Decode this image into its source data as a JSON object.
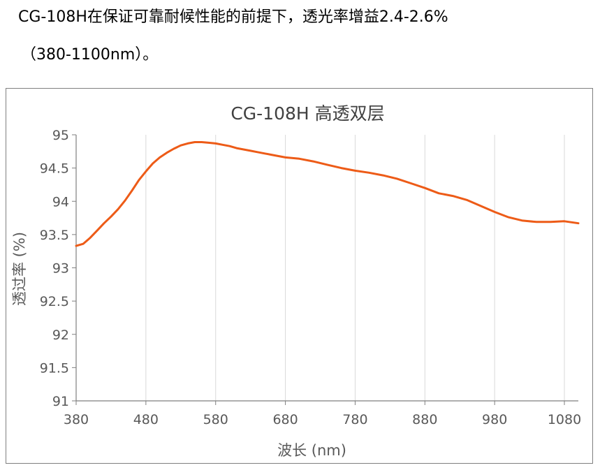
{
  "intro": {
    "line1": "CG-108H在保证可靠耐候性能的前提下，透光率增益2.4-2.6%",
    "line2": "（380-1100nm）。"
  },
  "chart_data": {
    "type": "line",
    "title": "CG-108H 高透双层",
    "xlabel": "波长 (nm)",
    "ylabel": "透过率 (%)",
    "xlim": [
      380,
      1100
    ],
    "ylim": [
      91,
      95
    ],
    "xticks": [
      380,
      480,
      580,
      680,
      780,
      880,
      980,
      1080
    ],
    "yticks": [
      91,
      91.5,
      92,
      92.5,
      93,
      93.5,
      94,
      94.5,
      95
    ],
    "ytick_labels": [
      "91",
      "91.5",
      "92",
      "92.5",
      "93",
      "93.5",
      "94",
      "94.5",
      "95"
    ],
    "grid": "vertical",
    "legend": "none",
    "line_color": "#ed5b17",
    "series": [
      {
        "name": "",
        "x": [
          380,
          390,
          400,
          410,
          420,
          430,
          440,
          450,
          460,
          470,
          480,
          490,
          500,
          510,
          520,
          530,
          540,
          550,
          560,
          570,
          580,
          590,
          600,
          610,
          620,
          630,
          640,
          660,
          680,
          700,
          720,
          740,
          760,
          780,
          800,
          820,
          840,
          860,
          880,
          900,
          920,
          940,
          960,
          980,
          1000,
          1020,
          1040,
          1060,
          1080,
          1100
        ],
        "y": [
          93.33,
          93.36,
          93.45,
          93.56,
          93.67,
          93.77,
          93.88,
          94.01,
          94.16,
          94.32,
          94.45,
          94.57,
          94.66,
          94.73,
          94.79,
          94.84,
          94.87,
          94.89,
          94.89,
          94.88,
          94.87,
          94.85,
          94.83,
          94.8,
          94.78,
          94.76,
          94.74,
          94.7,
          94.66,
          94.64,
          94.6,
          94.55,
          94.5,
          94.46,
          94.43,
          94.39,
          94.34,
          94.27,
          94.2,
          94.12,
          94.08,
          94.02,
          93.93,
          93.84,
          93.76,
          93.71,
          93.69,
          93.69,
          93.7,
          93.67
        ]
      }
    ]
  }
}
